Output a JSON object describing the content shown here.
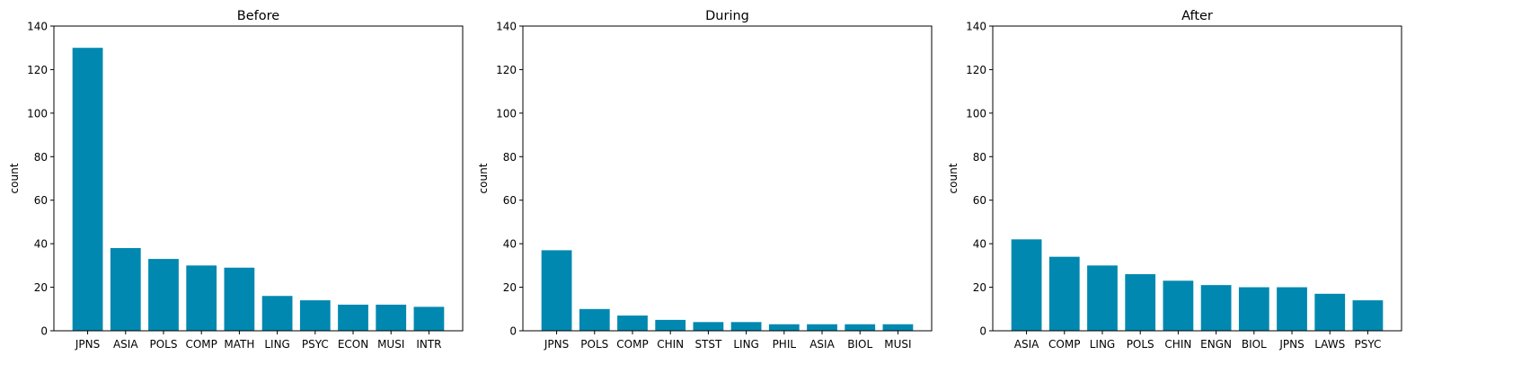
{
  "chart_data": [
    {
      "type": "bar",
      "title": "Before",
      "ylabel": "count",
      "xlabel": "",
      "ylim": [
        0,
        140
      ],
      "yticks": [
        0,
        20,
        40,
        60,
        80,
        100,
        120,
        140
      ],
      "grid": false,
      "color": "#0088b0",
      "categories": [
        "JPNS",
        "ASIA",
        "POLS",
        "COMP",
        "MATH",
        "LING",
        "PSYC",
        "ECON",
        "MUSI",
        "INTR"
      ],
      "values": [
        130,
        38,
        33,
        30,
        29,
        16,
        14,
        12,
        12,
        11
      ]
    },
    {
      "type": "bar",
      "title": "During",
      "ylabel": "count",
      "xlabel": "",
      "ylim": [
        0,
        140
      ],
      "yticks": [
        0,
        20,
        40,
        60,
        80,
        100,
        120,
        140
      ],
      "grid": false,
      "color": "#0088b0",
      "categories": [
        "JPNS",
        "POLS",
        "COMP",
        "CHIN",
        "STST",
        "LING",
        "PHIL",
        "ASIA",
        "BIOL",
        "MUSI"
      ],
      "values": [
        37,
        10,
        7,
        5,
        4,
        4,
        3,
        3,
        3,
        3
      ]
    },
    {
      "type": "bar",
      "title": "After",
      "ylabel": "count",
      "xlabel": "",
      "ylim": [
        0,
        140
      ],
      "yticks": [
        0,
        20,
        40,
        60,
        80,
        100,
        120,
        140
      ],
      "grid": false,
      "color": "#0088b0",
      "categories": [
        "ASIA",
        "COMP",
        "LING",
        "POLS",
        "CHIN",
        "ENGN",
        "BIOL",
        "JPNS",
        "LAWS",
        "PSYC"
      ],
      "values": [
        42,
        34,
        30,
        26,
        23,
        21,
        20,
        20,
        17,
        14
      ]
    }
  ]
}
